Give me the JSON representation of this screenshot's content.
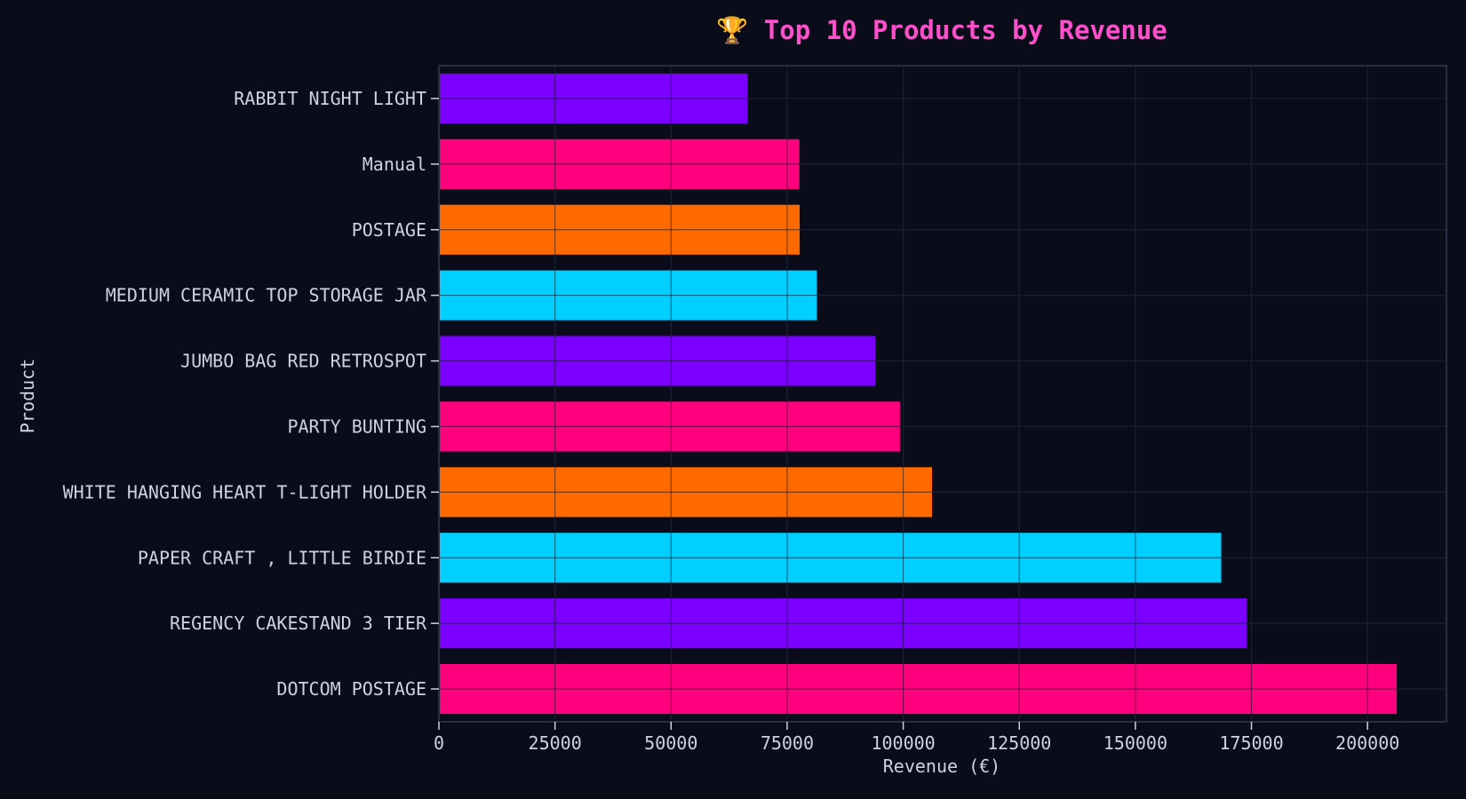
{
  "chart_data": {
    "type": "bar",
    "orientation": "horizontal",
    "title": "🏆 Top 10 Products by Revenue",
    "xlabel": "Revenue (€)",
    "ylabel": "Product",
    "categories": [
      "RABBIT NIGHT LIGHT",
      "Manual",
      "POSTAGE",
      "MEDIUM CERAMIC TOP STORAGE JAR",
      "JUMBO BAG RED RETROSPOT",
      "PARTY BUNTING",
      "WHITE HANGING HEART T-LIGHT HOLDER",
      "PAPER CRAFT , LITTLE BIRDIE",
      "REGENCY CAKESTAND 3 TIER",
      "DOTCOM POSTAGE"
    ],
    "values": [
      66500,
      77600,
      77700,
      81400,
      94000,
      99300,
      106200,
      168500,
      174000,
      206300
    ],
    "bar_colors": [
      "#7b00ff",
      "#ff007f",
      "#ff6a00",
      "#00cfff",
      "#7b00ff",
      "#ff007f",
      "#ff6a00",
      "#00cfff",
      "#7b00ff",
      "#ff007f"
    ],
    "xlim": [
      0,
      217000
    ],
    "xticks": [
      0,
      25000,
      50000,
      75000,
      100000,
      125000,
      150000,
      175000,
      200000
    ],
    "xtick_labels": [
      "0",
      "25000",
      "50000",
      "75000",
      "100000",
      "125000",
      "150000",
      "175000",
      "200000"
    ],
    "grid": true,
    "legend": "none"
  },
  "colors": {
    "background": "#0a0c1a",
    "plot_border": "#2a2e45",
    "grid": "#262a40",
    "text": "#cdd3e0",
    "title": "#ff4fcb"
  }
}
